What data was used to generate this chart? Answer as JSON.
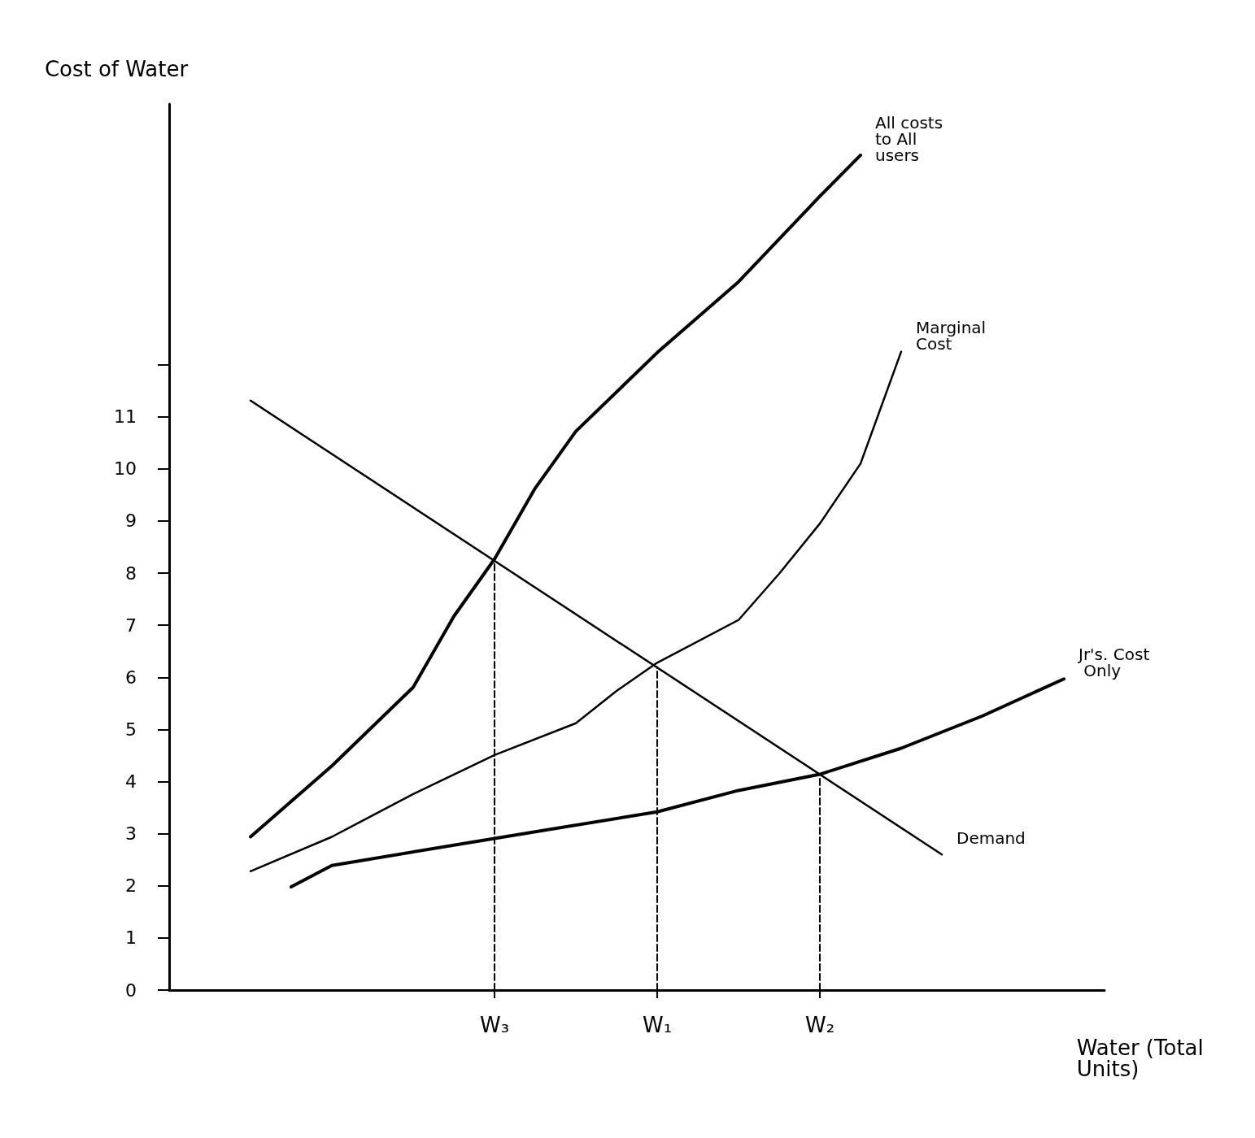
{
  "chart_data": {
    "type": "line",
    "ylabel": "Cost of Water",
    "xlabel": "Water (Total Units)",
    "categories": [
      null,
      null,
      null,
      null,
      null,
      null,
      null,
      null,
      "W₃",
      null,
      null,
      null,
      "W₁",
      null,
      null,
      null,
      "W₂",
      null,
      null,
      null,
      null,
      null,
      null,
      null
    ],
    "ylim": [
      0,
      17
    ],
    "yticks": [
      0,
      1,
      2,
      3,
      4,
      5,
      6,
      7,
      8,
      9,
      10,
      11,
      {
        "value": 12,
        "label": null
      }
    ],
    "grid": false,
    "marker": "none",
    "series": [
      {
        "name": "All costs to All users",
        "color": "#000000",
        "values": [
          null,
          null,
          2.94,
          null,
          4.3,
          null,
          5.81,
          7.17,
          8.27,
          9.63,
          10.72,
          null,
          12.23,
          null,
          13.59,
          null,
          15.23,
          16.02,
          null,
          null,
          null,
          null,
          null,
          null
        ]
      },
      {
        "name": "Marginal Cost",
        "color": "#000000",
        "values": [
          null,
          null,
          2.28,
          null,
          2.94,
          null,
          3.76,
          null,
          4.51,
          null,
          5.12,
          5.74,
          6.28,
          null,
          7.1,
          7.99,
          8.95,
          10.1,
          12.25,
          null,
          null,
          null,
          null,
          null
        ]
      },
      {
        "name": "Jr's. Cost Only",
        "color": "#000000",
        "values": [
          null,
          null,
          null,
          1.98,
          2.39,
          null,
          null,
          null,
          2.91,
          null,
          null,
          null,
          3.42,
          null,
          3.83,
          null,
          4.14,
          null,
          4.64,
          null,
          5.26,
          null,
          5.97,
          null
        ]
      },
      {
        "name": "Demand",
        "color": "#000000",
        "values": [
          null,
          null,
          11.31,
          null,
          null,
          null,
          null,
          null,
          null,
          null,
          null,
          null,
          null,
          null,
          null,
          null,
          null,
          null,
          null,
          2.6,
          null,
          null,
          null,
          null
        ]
      },
      {
        "color": "#000000",
        "line_style": "dashed",
        "x": [
          "W₃",
          "W₃"
        ],
        "values": [
          0,
          8.27
        ]
      },
      {
        "color": "#000000",
        "line_style": "dashed",
        "x": [
          "W₁",
          "W₁"
        ],
        "values": [
          0,
          6.2
        ]
      },
      {
        "color": "#000000",
        "line_style": "dashed",
        "x": [
          "W₂",
          "W₂"
        ],
        "values": [
          0,
          4.1
        ]
      }
    ]
  }
}
